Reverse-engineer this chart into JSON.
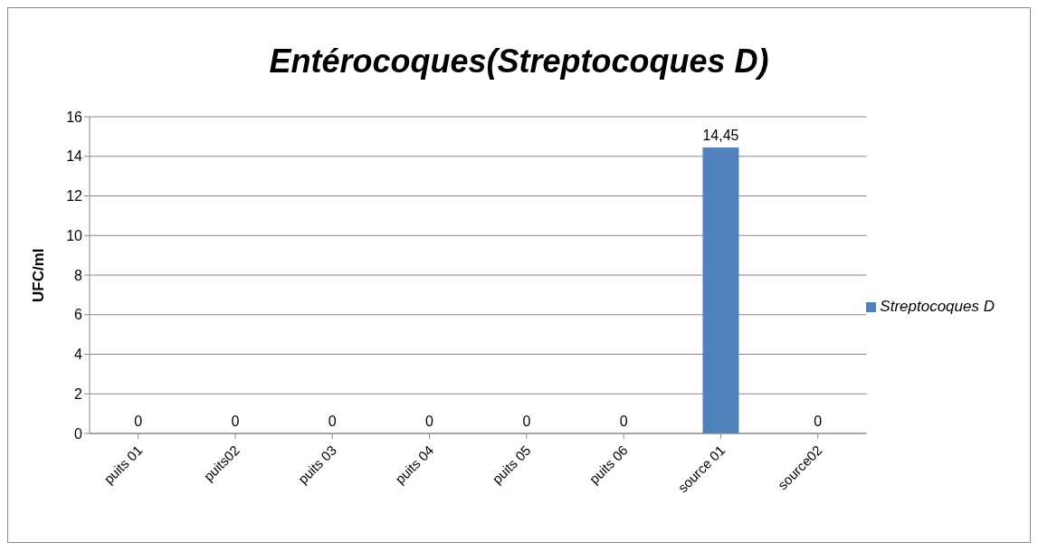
{
  "chart_data": {
    "type": "bar",
    "title": "Entérocoques(Streptocoques D)",
    "ylabel": "UFC/ml",
    "categories": [
      "puits 01",
      "puits02",
      "puits 03",
      "puits 04",
      "puits 05",
      "puits 06",
      "source 01",
      "source02"
    ],
    "series": [
      {
        "name": "Streptocoques D",
        "color": "#4f81bd",
        "values": [
          0,
          0,
          0,
          0,
          0,
          0,
          14.45,
          0
        ],
        "value_labels": [
          "0",
          "0",
          "0",
          "0",
          "0",
          "0",
          "14,45",
          "0"
        ]
      }
    ],
    "ylim": [
      0,
      16
    ],
    "yticks": [
      0,
      2,
      4,
      6,
      8,
      10,
      12,
      14,
      16
    ],
    "grid": "y",
    "legend": "right"
  }
}
